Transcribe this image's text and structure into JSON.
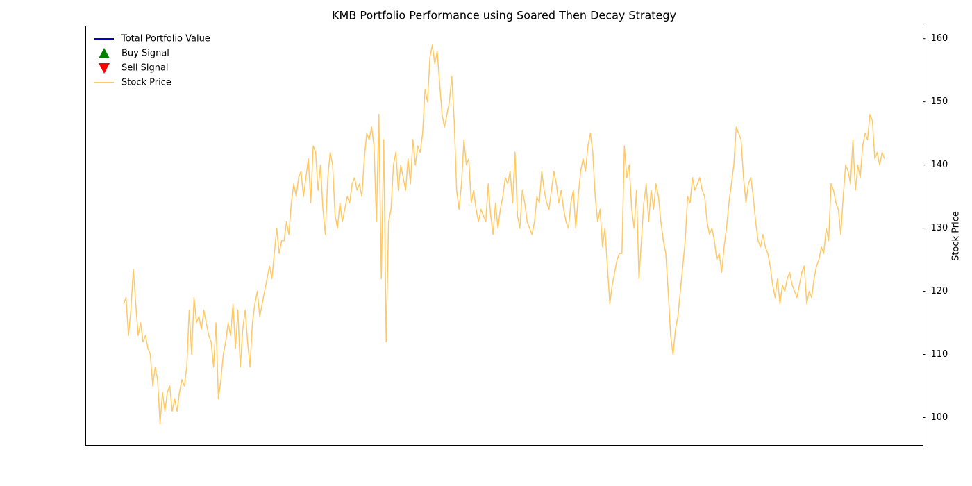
{
  "chart_data": {
    "type": "line",
    "title": "KMB Portfolio Performance using Soared Then Decay Strategy",
    "y2_label": "Stock Price",
    "legend": "upper left",
    "series": [
      {
        "name": "Total Portfolio Value",
        "color": "#0000cc",
        "marker": "line",
        "values": []
      },
      {
        "name": "Buy Signal",
        "color": "#008000",
        "marker": "triangle-up",
        "values": []
      },
      {
        "name": "Sell Signal",
        "color": "#ff0000",
        "marker": "triangle-down",
        "values": []
      },
      {
        "name": "Stock Price",
        "color": "#ffc966",
        "marker": "line",
        "axis": "y2",
        "values": [
          118,
          119,
          113,
          117,
          123.5,
          118,
          113,
          115,
          112,
          113,
          111,
          110,
          105,
          108,
          106,
          99,
          104,
          101,
          104,
          105,
          101,
          103,
          101,
          104,
          106,
          105,
          108,
          117,
          110,
          119,
          115,
          116,
          114,
          117,
          115,
          113,
          112,
          108,
          115,
          103,
          106,
          110,
          112,
          115,
          113,
          118,
          111,
          117,
          108,
          114,
          117,
          112,
          108,
          115,
          118,
          120,
          116,
          118,
          120,
          122,
          124,
          122,
          126,
          130,
          126,
          128,
          128,
          131,
          129,
          134,
          137,
          135,
          138,
          139,
          135,
          138,
          141,
          134,
          143,
          142,
          136,
          140,
          133,
          129,
          138,
          142,
          140,
          132,
          130,
          134,
          131,
          133,
          135,
          134,
          137,
          138,
          136,
          137,
          135,
          141,
          145,
          144,
          146,
          143,
          131,
          148,
          122,
          144,
          112,
          131,
          133,
          140,
          142,
          136,
          140,
          138,
          136,
          141,
          137,
          144,
          140,
          143,
          142,
          145,
          152,
          150,
          157,
          159,
          156,
          158,
          153,
          148,
          146,
          148,
          150,
          154,
          147,
          136,
          133,
          137,
          144,
          140,
          141,
          134,
          136,
          133,
          131,
          133,
          132,
          131,
          137,
          132,
          129,
          134,
          130,
          133,
          135,
          138,
          137,
          139,
          134,
          142,
          132,
          130,
          136,
          134,
          131,
          130,
          129,
          131,
          135,
          134,
          139,
          136,
          134,
          133,
          136,
          139,
          137,
          134,
          136,
          133,
          131,
          130,
          134,
          136,
          130,
          135,
          139,
          141,
          139,
          143,
          145,
          142,
          135,
          131,
          133,
          127,
          130,
          124,
          118,
          121,
          123,
          125,
          126,
          126,
          143,
          138,
          140,
          133,
          130,
          136,
          122,
          128,
          134,
          137,
          131,
          136,
          133,
          137,
          135,
          131,
          128,
          126,
          120,
          113,
          110,
          114,
          116,
          120,
          124,
          128,
          135,
          134,
          138,
          136,
          137,
          138,
          136,
          135,
          131,
          129,
          130,
          128,
          125,
          126,
          123,
          127,
          130,
          134,
          137,
          140,
          146,
          145,
          144,
          138,
          134,
          137,
          138,
          135,
          131,
          128,
          127,
          129,
          127,
          126,
          124,
          121,
          119,
          122,
          118,
          121,
          120,
          122,
          123,
          121,
          120,
          119,
          121,
          123,
          124,
          118,
          120,
          119,
          122,
          124,
          125,
          127,
          126,
          130,
          128,
          137,
          136,
          134,
          133,
          129,
          135,
          140,
          139,
          137,
          144,
          136,
          140,
          138,
          143,
          145,
          144,
          148,
          147,
          141,
          142,
          140,
          142,
          141
        ]
      }
    ],
    "y2lim": [
      95.6,
      162.0
    ],
    "y2ticks": [
      100,
      110,
      120,
      130,
      140,
      150,
      160
    ]
  }
}
